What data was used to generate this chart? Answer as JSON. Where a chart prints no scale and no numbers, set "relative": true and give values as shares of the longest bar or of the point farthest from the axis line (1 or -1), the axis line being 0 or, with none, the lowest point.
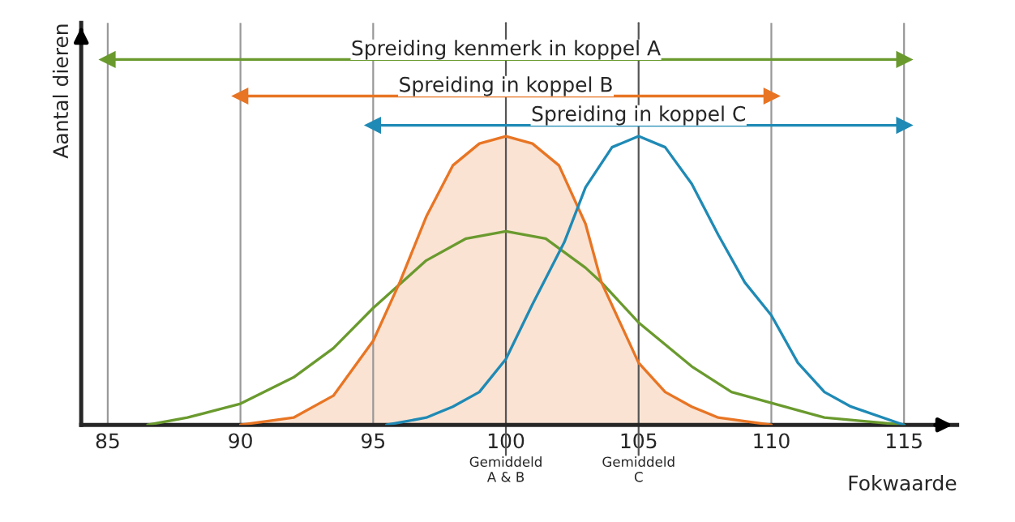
{
  "chart_data": {
    "type": "line",
    "relative": true,
    "xlabel": "Fokwaarde",
    "ylabel": "Aantal dieren",
    "xlim": [
      84,
      117
    ],
    "xticks": [
      85,
      90,
      95,
      100,
      105,
      110,
      115
    ],
    "series": [
      {
        "color": "#6a9a2e",
        "x": [
          86.5,
          88,
          90,
          92,
          93.5,
          95,
          97,
          98.5,
          100,
          101.5,
          103,
          103.6,
          105,
          107,
          108.5,
          110,
          112,
          115
        ],
        "values": [
          0,
          0.02,
          0.058,
          0.13,
          0.21,
          0.32,
          0.45,
          0.51,
          0.53,
          0.51,
          0.43,
          0.39,
          0.28,
          0.16,
          0.09,
          0.06,
          0.02,
          0
        ]
      },
      {
        "type": "area",
        "color": "#e87524",
        "x": [
          90,
          92,
          93.5,
          95,
          96,
          97,
          98,
          99,
          100,
          101,
          102,
          103,
          103.6,
          105,
          106,
          107,
          108,
          110
        ],
        "values": [
          0,
          0.02,
          0.08,
          0.23,
          0.39,
          0.57,
          0.71,
          0.77,
          0.79,
          0.77,
          0.71,
          0.55,
          0.39,
          0.17,
          0.09,
          0.05,
          0.02,
          0
        ]
      },
      {
        "color": "#1f8ab5",
        "x": [
          95.5,
          97,
          98,
          99,
          100,
          101,
          102.2,
          103,
          104,
          105,
          106,
          107,
          108,
          109,
          110,
          111,
          112,
          113,
          115
        ],
        "values": [
          0,
          0.02,
          0.05,
          0.09,
          0.18,
          0.33,
          0.5,
          0.65,
          0.76,
          0.79,
          0.76,
          0.66,
          0.52,
          0.39,
          0.3,
          0.17,
          0.09,
          0.05,
          0
        ]
      },
      {
        "name": "Spreiding kenmerk in koppel A",
        "color": "#6a9a2e",
        "marker": "triangle",
        "x": [
          85,
          115
        ],
        "values": [
          1,
          1
        ]
      },
      {
        "name": "Spreiding in koppel B",
        "color": "#e87524",
        "marker": "triangle",
        "x": [
          90,
          110
        ],
        "values": [
          0.9,
          0.9
        ]
      },
      {
        "name": "Spreiding in koppel C",
        "color": "#1f8ab5",
        "marker": "triangle",
        "x": [
          95,
          115
        ],
        "values": [
          0.82,
          0.82
        ]
      }
    ],
    "ref_lines": [
      {
        "axis": "x",
        "value": 85,
        "color": "#999999"
      },
      {
        "axis": "x",
        "value": 90,
        "color": "#999999"
      },
      {
        "axis": "x",
        "value": 95,
        "color": "#999999"
      },
      {
        "axis": "x",
        "value": 100,
        "label": "Gemiddeld\nA & B"
      },
      {
        "axis": "x",
        "value": 105,
        "label": "Gemiddeld\nC"
      },
      {
        "axis": "x",
        "value": 110,
        "color": "#999999"
      },
      {
        "axis": "x",
        "value": 115,
        "color": "#999999"
      }
    ]
  }
}
